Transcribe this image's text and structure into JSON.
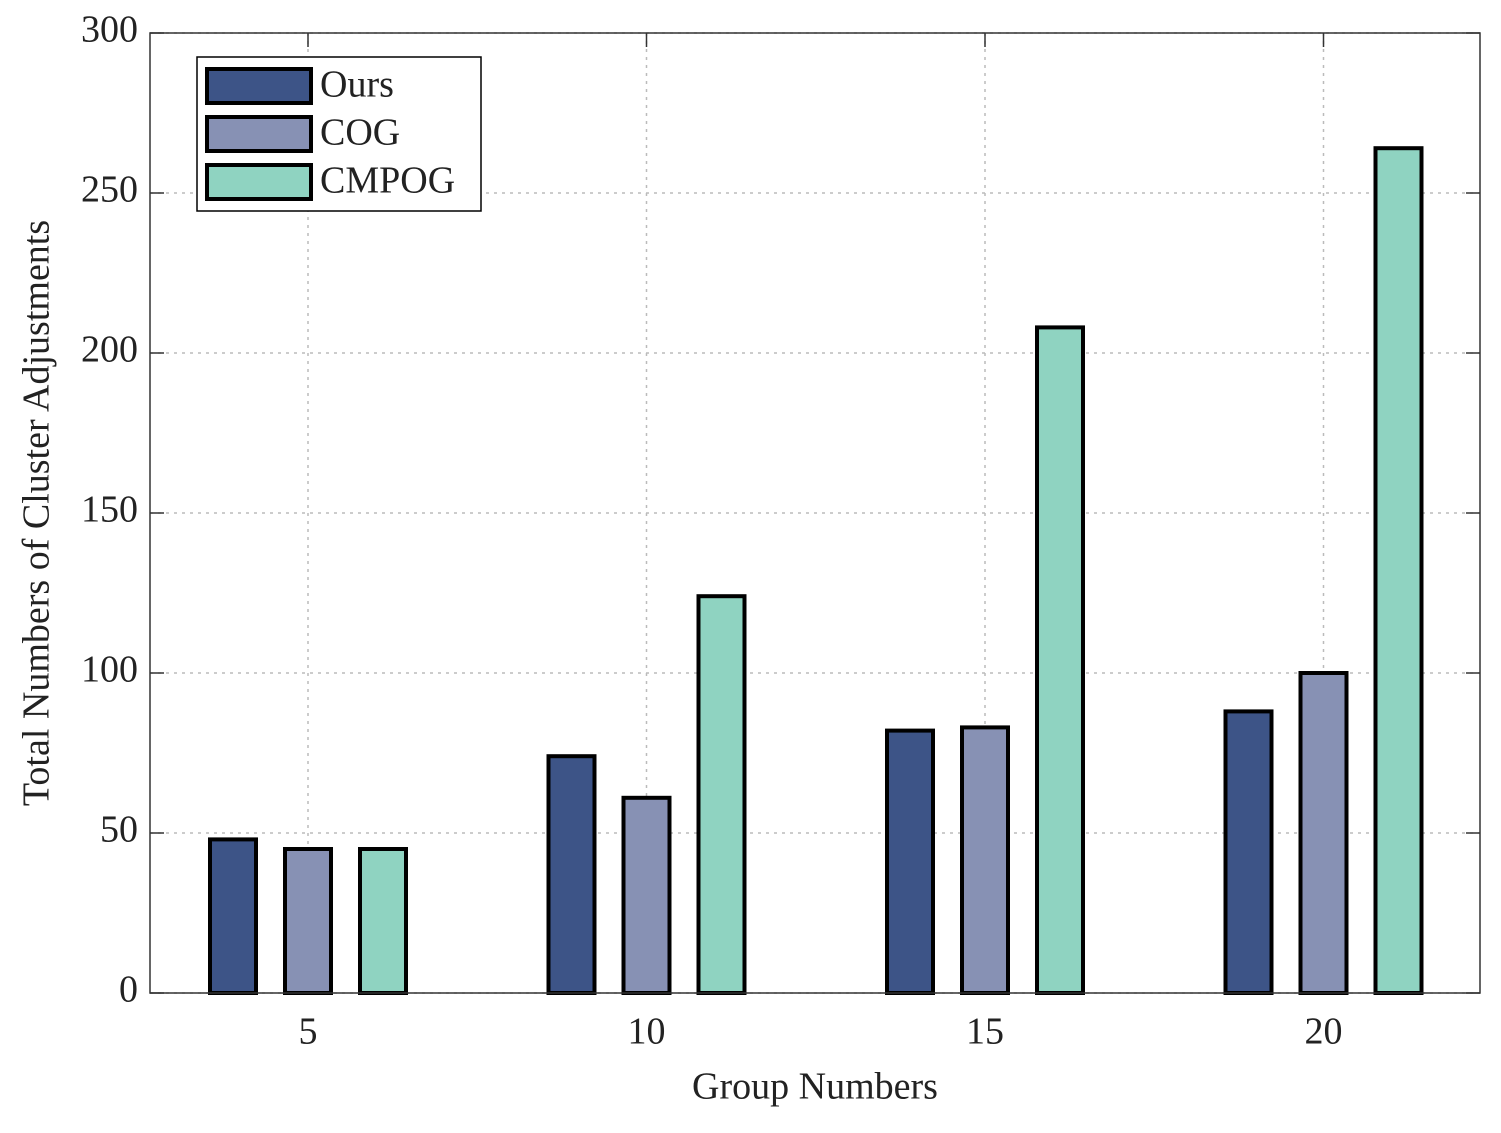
{
  "chart_data": {
    "type": "bar",
    "xlabel": "Group Numbers",
    "ylabel": "Total Numbers of Cluster Adjustments",
    "categories": [
      "5",
      "10",
      "15",
      "20"
    ],
    "series": [
      {
        "name": "Ours",
        "color": "#3d5487",
        "values": [
          48,
          74,
          82,
          88
        ]
      },
      {
        "name": "COG",
        "color": "#8791b4",
        "values": [
          45,
          61,
          83,
          100
        ]
      },
      {
        "name": "CMPOG",
        "color": "#8fd3c1",
        "values": [
          45,
          124,
          208,
          264
        ]
      }
    ],
    "ylim": [
      0,
      300
    ],
    "yticks": [
      0,
      50,
      100,
      150,
      200,
      250,
      300
    ],
    "grid": true,
    "legend": "upper-left"
  }
}
